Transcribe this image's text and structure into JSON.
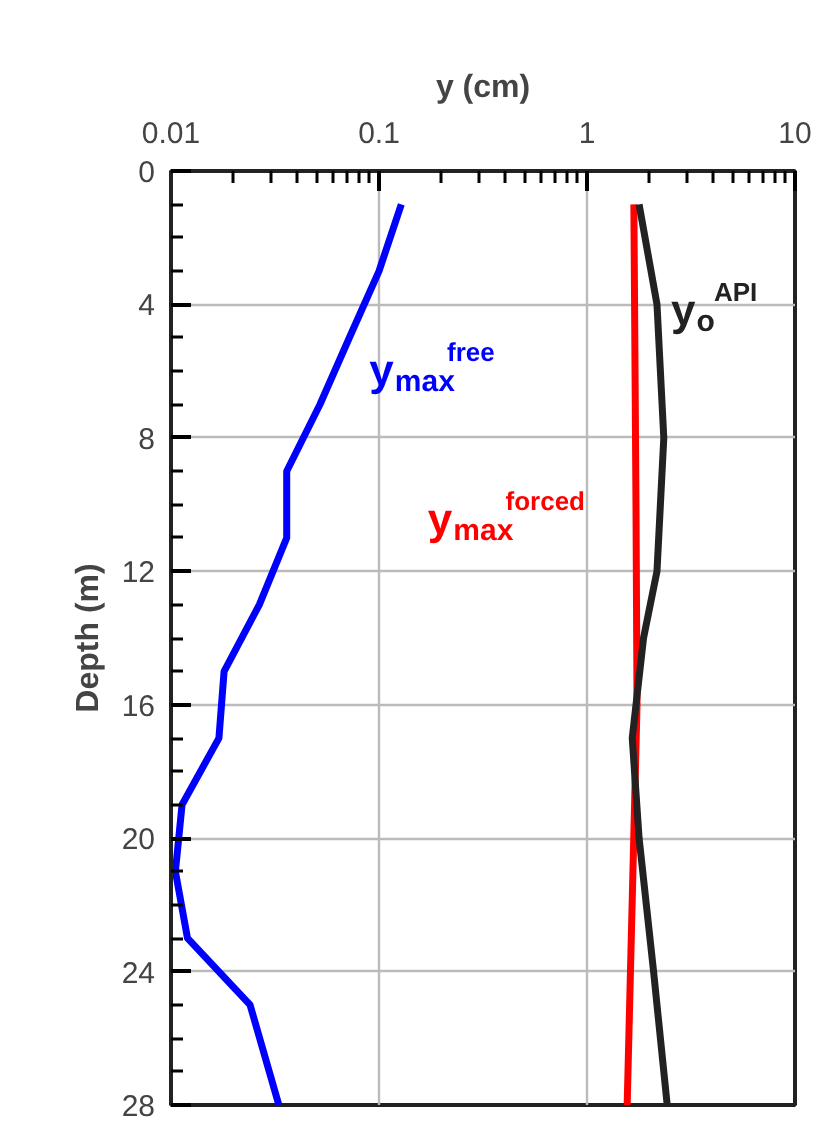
{
  "chart_data": {
    "type": "line",
    "xlabel": "y (cm)",
    "ylabel": "Depth (m)",
    "log": "x",
    "grid": true,
    "marker": "none",
    "line_style": "solid",
    "xlim": [
      0.01,
      10
    ],
    "xticks": [
      0.01,
      0.1,
      1,
      10
    ],
    "ylim": [
      28,
      0
    ],
    "yticks": [
      0,
      4,
      8,
      12,
      16,
      20,
      24,
      28
    ],
    "series": [
      {
        "name": "y$_{max}$$^{free}$",
        "color": "#0000ff",
        "x": [
          0.128,
          0.1,
          0.072,
          0.052,
          0.036,
          0.036,
          0.0266,
          0.018,
          0.017,
          0.0113,
          0.0105,
          0.012,
          0.024,
          0.033
        ],
        "values": [
          1,
          3,
          5,
          7,
          9,
          11,
          13,
          15,
          17,
          19,
          21,
          23,
          25,
          28
        ]
      },
      {
        "name": "y$_{max}$$^{forced}$",
        "color": "#ff0000",
        "x": [
          1.68,
          1.72,
          1.74,
          1.56
        ],
        "values": [
          1,
          10,
          16,
          28
        ]
      },
      {
        "name": "y$_{o}$$^{API}$",
        "color": "#222222",
        "x": [
          1.78,
          2.17,
          2.34,
          2.17,
          1.87,
          1.65,
          1.78,
          2.09,
          2.43
        ],
        "values": [
          1,
          4,
          8,
          12,
          14,
          17,
          20,
          24,
          28
        ]
      }
    ]
  }
}
